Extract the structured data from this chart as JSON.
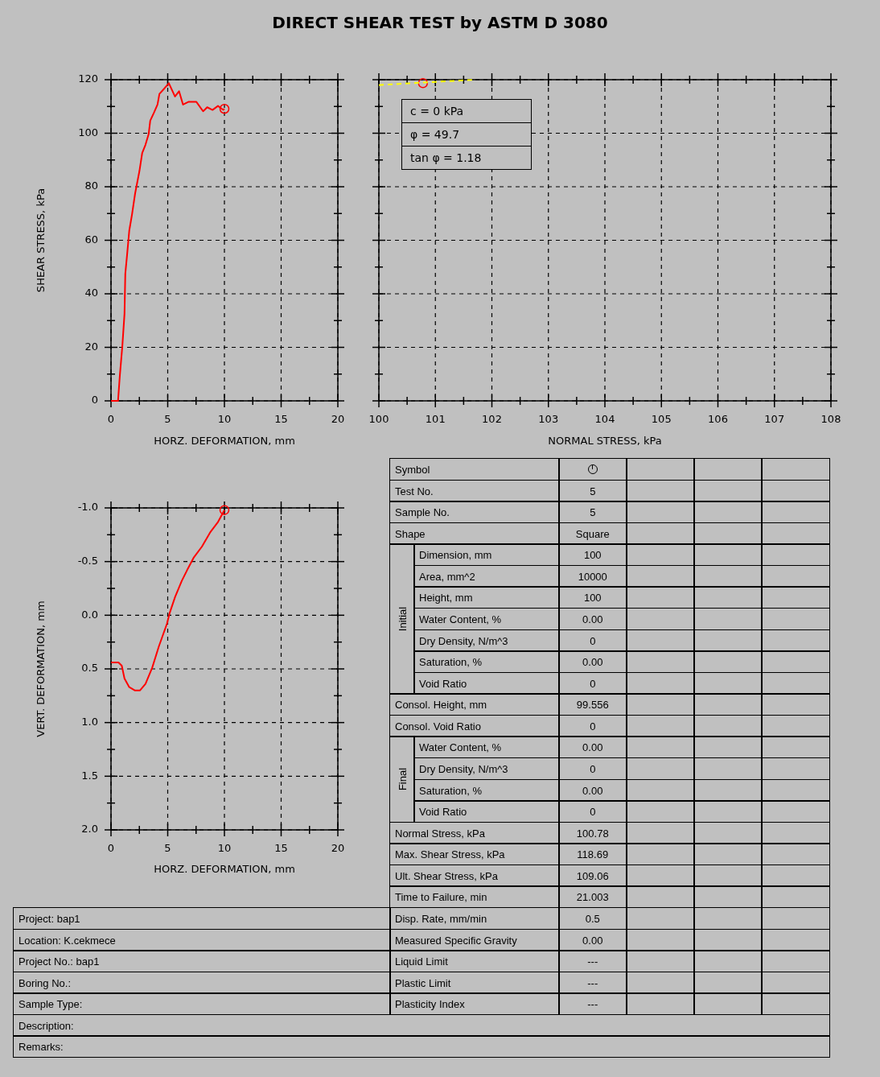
{
  "chart_data": [
    {
      "type": "line",
      "title": "DIRECT SHEAR TEST by ASTM D 3080",
      "xlabel": "HORZ. DEFORMATION, mm",
      "ylabel": "SHEAR STRESS, kPa",
      "xlim": [
        0,
        20
      ],
      "xticks": [
        0,
        {
          "value": 2.5,
          "label": null
        },
        5,
        {
          "value": 7.5,
          "label": null
        },
        10,
        {
          "value": 12.5,
          "label": null
        },
        15,
        {
          "value": 17.5,
          "label": null
        },
        20
      ],
      "ylim": [
        0,
        120
      ],
      "yticks": [
        0,
        {
          "value": 10,
          "label": null
        },
        20,
        {
          "value": 30,
          "label": null
        },
        40,
        {
          "value": 50,
          "label": null
        },
        60,
        {
          "value": 70,
          "label": null
        },
        80,
        {
          "value": 90,
          "label": null
        },
        100,
        {
          "value": 110,
          "label": null
        },
        120
      ],
      "grid": true,
      "series": [
        {
          "type": "line",
          "color": "#ff0000",
          "marker": "none",
          "x": [
            0,
            0.62,
            0.78,
            1.0,
            1.19,
            1.26,
            1.42,
            1.61,
            1.85,
            2.13,
            2.5,
            2.75,
            3.04,
            3.32,
            3.46,
            3.79,
            4.1,
            4.27,
            4.7,
            5.1,
            5.64,
            6.0,
            6.35,
            6.82,
            7.53,
            8.12,
            8.48,
            8.95,
            9.43,
            9.9,
            10.0
          ],
          "values": [
            0,
            0,
            9.5,
            20.5,
            32.5,
            47.5,
            54.6,
            63.6,
            69.6,
            77.6,
            85.7,
            92.6,
            95.7,
            99.7,
            104.7,
            107.7,
            110.7,
            114.7,
            116.7,
            118.7,
            113.7,
            115.7,
            110.7,
            111.7,
            111.7,
            108.2,
            109.7,
            108.7,
            110.2,
            108.7,
            109.1
          ]
        },
        {
          "type": "scatter",
          "color": "#ff0000",
          "marker": "circle",
          "x": [
            10.0
          ],
          "values": [
            109.1
          ]
        }
      ]
    },
    {
      "type": "line",
      "xlabel": "NORMAL STRESS, kPa",
      "xlim": [
        100,
        108
      ],
      "xticks": [
        100,
        {
          "value": 100.5,
          "label": null
        },
        101,
        {
          "value": 101.5,
          "label": null
        },
        102,
        {
          "value": 102.5,
          "label": null
        },
        103,
        {
          "value": 103.5,
          "label": null
        },
        104,
        {
          "value": 104.5,
          "label": null
        },
        105,
        {
          "value": 105.5,
          "label": null
        },
        106,
        {
          "value": 106.5,
          "label": null
        },
        107,
        {
          "value": 107.5,
          "label": null
        },
        108
      ],
      "ylim": [
        0,
        120
      ],
      "yticks": [
        {
          "value": 0,
          "label": null
        },
        {
          "value": 10,
          "label": null
        },
        {
          "value": 20,
          "label": null
        },
        {
          "value": 30,
          "label": null
        },
        {
          "value": 40,
          "label": null
        },
        {
          "value": 50,
          "label": null
        },
        {
          "value": 60,
          "label": null
        },
        {
          "value": 70,
          "label": null
        },
        {
          "value": 80,
          "label": null
        },
        {
          "value": 90,
          "label": null
        },
        {
          "value": 100,
          "label": null
        },
        {
          "value": 110,
          "label": null
        },
        {
          "value": 120,
          "label": null
        }
      ],
      "tick_labels": "x",
      "grid": true,
      "annotations": [
        "c = 0 kPa",
        "φ = 49.7",
        "tan φ = 1.18"
      ],
      "series": [
        {
          "type": "line",
          "color": "#ffff00",
          "marker": "none",
          "line_style": "dashed",
          "x": [
            100,
            101.7
          ],
          "values": [
            118,
            120
          ]
        },
        {
          "type": "scatter",
          "color": "#ff0000",
          "marker": "circle",
          "x": [
            100.78
          ],
          "values": [
            118.7
          ]
        }
      ]
    },
    {
      "type": "line",
      "xlabel": "HORZ. DEFORMATION, mm",
      "ylabel": "VERT. DEFORMATION, mm",
      "xlim": [
        0,
        20
      ],
      "xticks": [
        0,
        {
          "value": 2.5,
          "label": null
        },
        5,
        {
          "value": 7.5,
          "label": null
        },
        10,
        {
          "value": 12.5,
          "label": null
        },
        15,
        {
          "value": 17.5,
          "label": null
        },
        20
      ],
      "ylim": [
        2,
        -1
      ],
      "yticks": [
        {
          "value": -1,
          "label": "-1.0"
        },
        {
          "value": -0.75,
          "label": null
        },
        {
          "value": -0.5,
          "label": "-0.5"
        },
        {
          "value": -0.25,
          "label": null
        },
        {
          "value": 0,
          "label": "0.0"
        },
        {
          "value": 0.25,
          "label": null
        },
        {
          "value": 0.5,
          "label": "0.5"
        },
        {
          "value": 0.75,
          "label": null
        },
        {
          "value": 1,
          "label": "1.0"
        },
        {
          "value": 1.25,
          "label": null
        },
        {
          "value": 1.5,
          "label": "1.5"
        },
        {
          "value": 1.75,
          "label": null
        },
        {
          "value": 2,
          "label": "2.0"
        }
      ],
      "grid": true,
      "series": [
        {
          "type": "line",
          "color": "#ff0000",
          "marker": "none",
          "x": [
            0,
            0.66,
            0.95,
            1.19,
            1.61,
            2.09,
            2.56,
            3.04,
            3.63,
            4.22,
            4.93,
            5.17,
            5.65,
            6.24,
            6.71,
            7.31,
            8.02,
            8.73,
            9.44,
            10.0
          ],
          "values": [
            0.44,
            0.44,
            0.47,
            0.59,
            0.67,
            0.7,
            0.7,
            0.64,
            0.49,
            0.29,
            0.08,
            -0.02,
            -0.17,
            -0.32,
            -0.42,
            -0.54,
            -0.64,
            -0.77,
            -0.87,
            -0.98
          ]
        },
        {
          "type": "scatter",
          "color": "#ff0000",
          "marker": "circle",
          "x": [
            10.0
          ],
          "values": [
            -0.98
          ]
        }
      ]
    },
    {
      "type": "other",
      "annotations": [
        "Symbol",
        "Test No.",
        "5",
        "Sample No.",
        "5",
        "Shape",
        "Square",
        "Initial",
        "Dimension, mm",
        "100",
        "Area, mm^2",
        "10000",
        "Height, mm",
        "100",
        "Water Content, %",
        "0.00",
        "Dry Density, N/m^3",
        "0",
        "Saturation, %",
        "0.00",
        "Void Ratio",
        "0",
        "Consol. Height, mm",
        "99.556",
        "Consol. Void Ratio",
        "0",
        "Final",
        "Water Content, %",
        "0.00",
        "Dry Density, N/m^3",
        "0",
        "Saturation, %",
        "0.00",
        "Void Ratio",
        "0",
        "Normal Stress, kPa",
        "100.78",
        "Max. Shear Stress, kPa",
        "118.69",
        "Ult. Shear Stress, kPa",
        "109.06",
        "Time to Failure, min",
        "21.003",
        "Disp. Rate, mm/min",
        "0.5",
        "Measured Specific Gravity",
        "0.00",
        "Liquid Limit",
        "---",
        "Plastic Limit",
        "---",
        "Plasticity Index",
        "---",
        "Project: bap1",
        "Location: K.cekmece",
        "Project No.: bap1",
        "Boring No.:",
        "Sample Type:",
        "Description:",
        "Remarks:"
      ]
    }
  ]
}
